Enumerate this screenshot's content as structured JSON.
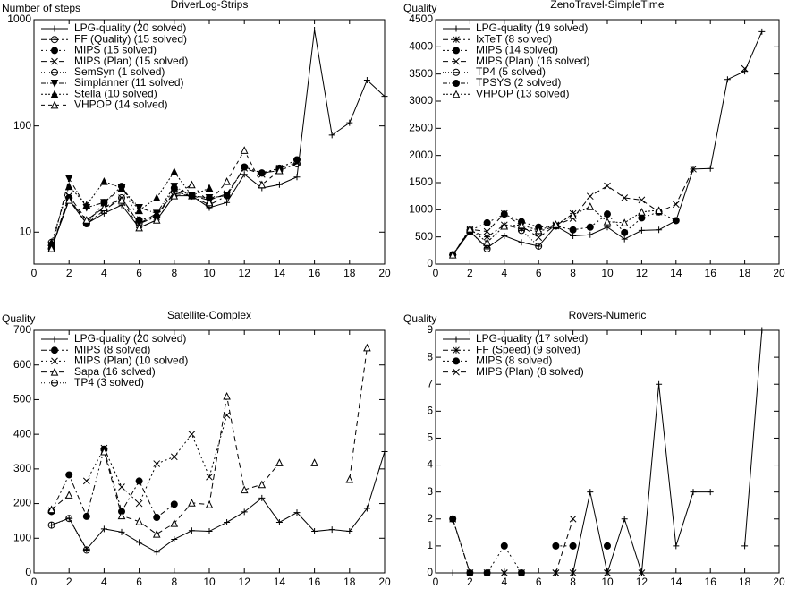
{
  "chart_data": [
    {
      "type": "line",
      "title": "DriverLog-Strips",
      "ylabel": "Number of steps",
      "yscale": "log",
      "x": [
        1,
        2,
        3,
        4,
        5,
        6,
        7,
        8,
        9,
        10,
        11,
        12,
        13,
        14,
        15,
        16,
        17,
        18,
        19,
        20
      ],
      "xlim": [
        0,
        20
      ],
      "xticks": [
        0,
        2,
        4,
        6,
        8,
        10,
        12,
        14,
        16,
        18,
        20
      ],
      "ylim": [
        5,
        1000
      ],
      "yticks": [
        10,
        100,
        1000
      ],
      "series": [
        {
          "name": "LPG-quality (20  solved)",
          "color": "#000000",
          "marker": "plus",
          "values": [
            7,
            20,
            12,
            15,
            18,
            11,
            13,
            22,
            22,
            17,
            19,
            35,
            26,
            28,
            33,
            800,
            82,
            107,
            270,
            190
          ]
        },
        {
          "name": "FF (Quality) (15  solved)",
          "color": "#000000",
          "marker": "circle-open",
          "values": [
            7,
            21,
            12,
            16,
            21,
            12,
            14,
            24,
            22,
            18,
            22,
            41,
            36,
            38,
            44,
            null,
            null,
            null,
            null,
            null
          ]
        },
        {
          "name": "MIPS (15  solved)",
          "color": "#000000",
          "marker": "circle",
          "values": [
            7,
            21,
            12,
            19,
            27,
            13,
            14,
            26,
            22,
            21,
            22,
            41,
            36,
            40,
            48,
            null,
            null,
            null,
            null,
            null
          ]
        },
        {
          "name": "MIPS (Plan) (15  solved)",
          "color": "#000000",
          "marker": "x",
          "values": [
            7,
            22,
            13,
            17,
            21,
            12,
            15,
            23,
            22,
            20,
            23,
            40,
            35,
            40,
            45,
            null,
            null,
            null,
            null,
            null
          ]
        },
        {
          "name": "SemSyn (1  solved)",
          "color": "#000000",
          "marker": "circle-open",
          "values": [
            8,
            null,
            null,
            null,
            null,
            null,
            null,
            null,
            null,
            null,
            null,
            null,
            null,
            null,
            null,
            null,
            null,
            null,
            null,
            null
          ]
        },
        {
          "name": "Simplanner (11  solved)",
          "color": "#000000",
          "marker": "triangle-down",
          "values": [
            7,
            32,
            17,
            19,
            26,
            17,
            15,
            27,
            22,
            21,
            22,
            null,
            null,
            null,
            null,
            null,
            null,
            null,
            null,
            null
          ]
        },
        {
          "name": "Stella (10  solved)",
          "color": "#000000",
          "marker": "triangle",
          "values": [
            8,
            27,
            18,
            30,
            26,
            16,
            21,
            37,
            22,
            26,
            null,
            null,
            null,
            null,
            null,
            null,
            null,
            null,
            null,
            null
          ]
        },
        {
          "name": "VHPOP (14  solved)",
          "color": "#000000",
          "marker": "triangle-open",
          "values": [
            7,
            20,
            13,
            17,
            20,
            11,
            13,
            22,
            28,
            19,
            30,
            59,
            28,
            38,
            null,
            null,
            null,
            null,
            null,
            null
          ]
        }
      ]
    },
    {
      "type": "line",
      "title": "ZenoTravel-SimpleTime",
      "ylabel": "Quality",
      "x": [
        1,
        2,
        3,
        4,
        5,
        6,
        7,
        8,
        9,
        10,
        11,
        12,
        13,
        14,
        15,
        16,
        17,
        18,
        19,
        20
      ],
      "xlim": [
        0,
        20
      ],
      "xticks": [
        0,
        2,
        4,
        6,
        8,
        10,
        12,
        14,
        16,
        18,
        20
      ],
      "ylim": [
        0,
        4500
      ],
      "yticks": [
        0,
        500,
        1000,
        1500,
        2000,
        2500,
        3000,
        3500,
        4000,
        4500
      ],
      "series": [
        {
          "name": "LPG-quality (19  solved)",
          "color": "#000000",
          "marker": "plus",
          "values": [
            170,
            600,
            300,
            520,
            400,
            330,
            700,
            520,
            540,
            680,
            460,
            620,
            630,
            800,
            1750,
            1760,
            3400,
            3550,
            4280,
            null
          ]
        },
        {
          "name": "IxTeT (8  solved)",
          "color": "#000000",
          "marker": "star",
          "values": [
            170,
            620,
            500,
            720,
            650,
            600,
            700,
            930,
            null,
            null,
            null,
            null,
            null,
            null,
            null,
            null,
            null,
            null,
            null,
            null
          ]
        },
        {
          "name": "MIPS (14  solved)",
          "color": "#000000",
          "marker": "circle",
          "values": [
            170,
            620,
            760,
            920,
            780,
            680,
            700,
            630,
            680,
            920,
            580,
            850,
            960,
            800,
            null,
            null,
            null,
            null,
            null,
            null
          ]
        },
        {
          "name": "MIPS (Plan) (16  solved)",
          "color": "#000000",
          "marker": "x",
          "values": [
            170,
            640,
            600,
            930,
            700,
            490,
            720,
            840,
            1250,
            1440,
            1220,
            1180,
            960,
            1100,
            1750,
            null,
            null,
            3600,
            null,
            null
          ]
        },
        {
          "name": "TP4 (5  solved)",
          "color": "#000000",
          "marker": "circle-open",
          "values": [
            170,
            600,
            280,
            null,
            620,
            330,
            null,
            null,
            null,
            null,
            null,
            null,
            null,
            null,
            null,
            null,
            null,
            null,
            null,
            null
          ]
        },
        {
          "name": "TPSYS (2  solved)",
          "color": "#000000",
          "marker": "circle",
          "values": [
            170,
            600,
            null,
            null,
            null,
            null,
            null,
            null,
            null,
            null,
            null,
            null,
            null,
            null,
            null,
            null,
            null,
            null,
            null,
            null
          ]
        },
        {
          "name": "VHPOP (13  solved)",
          "color": "#000000",
          "marker": "triangle-open",
          "values": [
            170,
            650,
            400,
            700,
            720,
            620,
            730,
            900,
            1060,
            780,
            760,
            960,
            990,
            null,
            null,
            null,
            null,
            null,
            null,
            null
          ]
        }
      ]
    },
    {
      "type": "line",
      "title": "Satellite-Complex",
      "ylabel": "Quality",
      "x": [
        1,
        2,
        3,
        4,
        5,
        6,
        7,
        8,
        9,
        10,
        11,
        12,
        13,
        14,
        15,
        16,
        17,
        18,
        19,
        20
      ],
      "xlim": [
        0,
        20
      ],
      "xticks": [
        0,
        2,
        4,
        6,
        8,
        10,
        12,
        14,
        16,
        18,
        20
      ],
      "ylim": [
        0,
        700
      ],
      "yticks": [
        0,
        100,
        200,
        300,
        400,
        500,
        600,
        700
      ],
      "series": [
        {
          "name": "LPG-quality (20  solved)",
          "color": "#000000",
          "marker": "plus",
          "values": [
            138,
            158,
            68,
            127,
            118,
            88,
            60,
            97,
            122,
            120,
            146,
            176,
            216,
            146,
            174,
            120,
            125,
            120,
            186,
            350
          ]
        },
        {
          "name": "MIPS (8  solved)",
          "color": "#000000",
          "marker": "circle",
          "values": [
            177,
            283,
            163,
            357,
            177,
            265,
            160,
            198,
            null,
            null,
            null,
            null,
            null,
            null,
            null,
            null,
            null,
            null,
            null,
            null
          ]
        },
        {
          "name": "MIPS (Plan) (10  solved)",
          "color": "#000000",
          "marker": "x",
          "values": [
            180,
            null,
            265,
            360,
            248,
            200,
            315,
            335,
            400,
            277,
            455,
            null,
            null,
            null,
            null,
            null,
            null,
            null,
            null,
            null
          ]
        },
        {
          "name": "Sapa (16  solved)",
          "color": "#000000",
          "marker": "triangle-open",
          "values": [
            183,
            225,
            null,
            350,
            165,
            148,
            112,
            143,
            202,
            197,
            510,
            240,
            255,
            318,
            null,
            318,
            null,
            270,
            650,
            null
          ]
        },
        {
          "name": "TP4 (3  solved)",
          "color": "#000000",
          "marker": "circle-open",
          "values": [
            138,
            157,
            66,
            null,
            null,
            null,
            null,
            null,
            null,
            null,
            null,
            null,
            null,
            null,
            null,
            null,
            null,
            null,
            null,
            null
          ]
        }
      ]
    },
    {
      "type": "line",
      "title": "Rovers-Numeric",
      "ylabel": "Quality",
      "x": [
        1,
        2,
        3,
        4,
        5,
        6,
        7,
        8,
        9,
        10,
        11,
        12,
        13,
        14,
        15,
        16,
        17,
        18,
        19,
        20
      ],
      "xlim": [
        0,
        20
      ],
      "xticks": [
        0,
        2,
        4,
        6,
        8,
        10,
        12,
        14,
        16,
        18,
        20
      ],
      "ylim": [
        0,
        9
      ],
      "yticks": [
        0,
        1,
        2,
        3,
        4,
        5,
        6,
        7,
        8,
        9
      ],
      "series": [
        {
          "name": "LPG-quality (17  solved)",
          "color": "#000000",
          "marker": "plus",
          "values": [
            0,
            0,
            0,
            0,
            0,
            null,
            0,
            0,
            3,
            0,
            2,
            0,
            7,
            1,
            3,
            3,
            null,
            1,
            9,
            null
          ]
        },
        {
          "name": "FF (Speed) (9  solved)",
          "color": "#000000",
          "marker": "star",
          "values": [
            2,
            0,
            0,
            0,
            0,
            null,
            0,
            0,
            null,
            0,
            null,
            0,
            null,
            null,
            null,
            null,
            null,
            null,
            null,
            null
          ]
        },
        {
          "name": "MIPS (8  solved)",
          "color": "#000000",
          "marker": "circle",
          "values": [
            2,
            0,
            0,
            1,
            0,
            null,
            1,
            1,
            null,
            1,
            null,
            null,
            null,
            null,
            null,
            null,
            null,
            null,
            null,
            null
          ]
        },
        {
          "name": "MIPS (Plan) (8  solved)",
          "color": "#000000",
          "marker": "x",
          "values": [
            2,
            0,
            0,
            0,
            0,
            null,
            0,
            2,
            null,
            0,
            null,
            null,
            null,
            null,
            null,
            null,
            null,
            null,
            null,
            null
          ]
        }
      ]
    }
  ]
}
